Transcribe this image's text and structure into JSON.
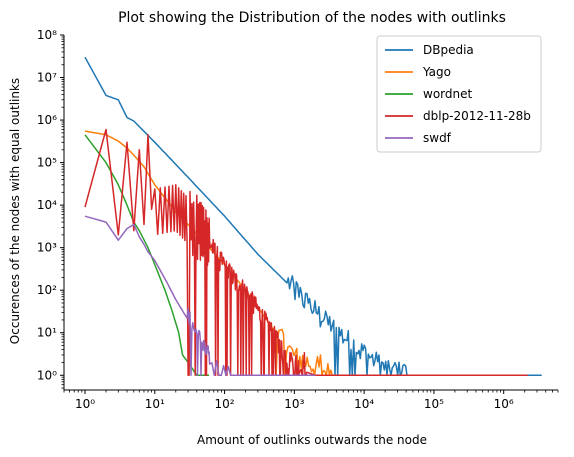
{
  "chart_data": {
    "type": "line",
    "title": "Plot showing the Distribution of the nodes with outlinks",
    "xlabel": "Amount of outlinks outwards the node",
    "ylabel": "Occurences of the nodes with equal outlinks",
    "xscale": "log",
    "yscale": "log",
    "xlim": [
      0.5,
      6000000
    ],
    "ylim": [
      0.45,
      100000000
    ],
    "x_ticks": [
      {
        "value": 1,
        "label": "10⁰"
      },
      {
        "value": 10,
        "label": "10¹"
      },
      {
        "value": 100,
        "label": "10²"
      },
      {
        "value": 1000,
        "label": "10³"
      },
      {
        "value": 10000,
        "label": "10⁴"
      },
      {
        "value": 100000,
        "label": "10⁵"
      },
      {
        "value": 1000000,
        "label": "10⁶"
      }
    ],
    "y_ticks": [
      {
        "value": 1,
        "label": "10⁰"
      },
      {
        "value": 10,
        "label": "10¹"
      },
      {
        "value": 100,
        "label": "10²"
      },
      {
        "value": 1000,
        "label": "10³"
      },
      {
        "value": 10000,
        "label": "10⁴"
      },
      {
        "value": 100000,
        "label": "10⁵"
      },
      {
        "value": 1000000,
        "label": "10⁶"
      },
      {
        "value": 10000000,
        "label": "10⁷"
      },
      {
        "value": 100000000,
        "label": "10⁸"
      }
    ],
    "grid": false,
    "legend_position": "top-right",
    "series": [
      {
        "name": "DBpedia",
        "color": "#1f77b4",
        "points": [
          [
            1,
            30000000
          ],
          [
            2,
            3800000
          ],
          [
            3,
            3000000
          ],
          [
            4,
            1150000
          ],
          [
            5,
            950000
          ],
          [
            10,
            300000
          ],
          [
            30,
            45000
          ],
          [
            100,
            5500
          ],
          [
            300,
            700
          ],
          [
            1000,
            100
          ],
          [
            3000,
            15
          ],
          [
            10000,
            3
          ],
          [
            20000,
            1.3
          ],
          [
            40000,
            1
          ],
          [
            3000000,
            1
          ],
          [
            3500000,
            1
          ]
        ],
        "noise": {
          "from": 800,
          "to": 40000,
          "min": 1,
          "max": 2.2,
          "step": 1.045
        }
      },
      {
        "name": "Yago",
        "color": "#ff7f0e",
        "points": [
          [
            1,
            550000
          ],
          [
            2,
            450000
          ],
          [
            3,
            320000
          ],
          [
            4,
            220000
          ],
          [
            5,
            150000
          ],
          [
            7,
            80000
          ],
          [
            10,
            30000
          ],
          [
            20,
            7000
          ],
          [
            30,
            3500
          ],
          [
            100,
            400
          ],
          [
            200,
            100
          ],
          [
            300,
            40
          ],
          [
            500,
            12
          ],
          [
            800,
            4
          ],
          [
            1000,
            2.5
          ],
          [
            2000,
            1.5
          ],
          [
            3000,
            1
          ],
          [
            2200000,
            1
          ]
        ],
        "noise": {
          "from": 500,
          "to": 4000,
          "min": 1,
          "max": 3.5,
          "step": 1.05
        }
      },
      {
        "name": "wordnet",
        "color": "#2ca02c",
        "points": [
          [
            1,
            450000
          ],
          [
            2,
            100000
          ],
          [
            3,
            30000
          ],
          [
            4,
            10000
          ],
          [
            5,
            4000
          ],
          [
            6,
            2500
          ],
          [
            8,
            1000
          ],
          [
            10,
            400
          ],
          [
            14,
            100
          ],
          [
            18,
            30
          ],
          [
            22,
            10
          ],
          [
            25,
            3
          ],
          [
            30,
            2
          ],
          [
            40,
            1
          ],
          [
            60,
            1
          ]
        ]
      },
      {
        "name": "dblp-2012-11-28b",
        "color": "#d62728",
        "points": [
          [
            1,
            9000
          ],
          [
            2,
            600000
          ],
          [
            3,
            2000
          ],
          [
            4,
            300000
          ],
          [
            5,
            2500
          ],
          [
            6,
            200000
          ],
          [
            7,
            3500
          ],
          [
            8,
            150000
          ],
          [
            10,
            8000
          ],
          [
            20,
            10000
          ],
          [
            50,
            2000
          ],
          [
            100,
            300
          ],
          [
            200,
            80
          ],
          [
            300,
            30
          ],
          [
            500,
            8
          ],
          [
            700,
            3
          ],
          [
            1000,
            1.5
          ],
          [
            2000,
            1
          ],
          [
            2200000,
            1
          ]
        ],
        "oscillate": {
          "from": 8,
          "to": 60,
          "hi": 3.0,
          "lo": 0.25
        },
        "noise": {
          "from": 30,
          "to": 1500,
          "min": 1,
          "max": 4,
          "step": 1.02
        }
      },
      {
        "name": "swdf",
        "color": "#9467bd",
        "points": [
          [
            1,
            5500
          ],
          [
            2,
            4000
          ],
          [
            3,
            1500
          ],
          [
            4,
            2800
          ],
          [
            5,
            3500
          ],
          [
            6,
            1800
          ],
          [
            7,
            1200
          ],
          [
            8,
            800
          ],
          [
            10,
            500
          ],
          [
            15,
            150
          ],
          [
            20,
            60
          ],
          [
            30,
            20
          ],
          [
            50,
            4
          ],
          [
            70,
            1.5
          ],
          [
            90,
            1
          ],
          [
            120,
            1
          ],
          [
            300,
            1
          ],
          [
            2000,
            1
          ]
        ],
        "noise": {
          "from": 30,
          "to": 120,
          "min": 1,
          "max": 3,
          "step": 1.08
        }
      }
    ]
  }
}
